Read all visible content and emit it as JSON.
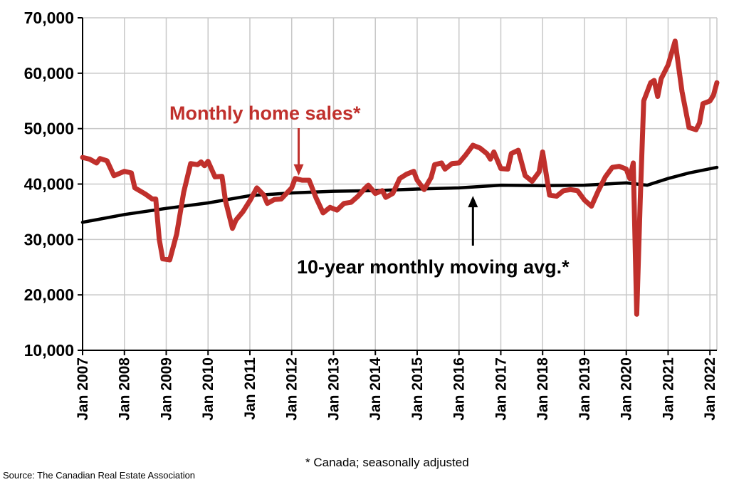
{
  "chart_data": {
    "type": "line",
    "ylim": [
      10000,
      70000
    ],
    "yticks": [
      10000,
      20000,
      30000,
      40000,
      50000,
      60000,
      70000
    ],
    "ytick_labels": [
      "10,000",
      "20,000",
      "30,000",
      "40,000",
      "50,000",
      "60,000",
      "70,000"
    ],
    "x_range": [
      "Jan 2007",
      "Mar 2022"
    ],
    "xtick_labels": [
      "Jan 2007",
      "Jan 2008",
      "Jan 2009",
      "Jan 2010",
      "Jan 2011",
      "Jan 2012",
      "Jan 2013",
      "Jan 2014",
      "Jan 2015",
      "Jan 2016",
      "Jan 2017",
      "Jan 2018",
      "Jan 2019",
      "Jan 2020",
      "Jan 2021",
      "Jan 2022"
    ],
    "grid": true,
    "series": [
      {
        "name": "Monthly home sales*",
        "color": "#c0302c",
        "points": [
          [
            "2007-01",
            44800
          ],
          [
            "2007-03",
            44500
          ],
          [
            "2007-05",
            43800
          ],
          [
            "2007-06",
            44600
          ],
          [
            "2007-08",
            44200
          ],
          [
            "2007-10",
            41500
          ],
          [
            "2008-01",
            42300
          ],
          [
            "2008-03",
            42000
          ],
          [
            "2008-04",
            39300
          ],
          [
            "2008-07",
            38200
          ],
          [
            "2008-09",
            37300
          ],
          [
            "2008-10",
            37300
          ],
          [
            "2008-11",
            30000
          ],
          [
            "2008-12",
            26500
          ],
          [
            "2009-02",
            26300
          ],
          [
            "2009-04",
            31000
          ],
          [
            "2009-06",
            38500
          ],
          [
            "2009-08",
            43700
          ],
          [
            "2009-10",
            43500
          ],
          [
            "2009-11",
            44000
          ],
          [
            "2009-12",
            43300
          ],
          [
            "2010-01",
            44100
          ],
          [
            "2010-03",
            41300
          ],
          [
            "2010-05",
            41400
          ],
          [
            "2010-06",
            37000
          ],
          [
            "2010-08",
            32000
          ],
          [
            "2010-09",
            33500
          ],
          [
            "2010-11",
            35000
          ],
          [
            "2011-01",
            37000
          ],
          [
            "2011-03",
            39300
          ],
          [
            "2011-05",
            38000
          ],
          [
            "2011-06",
            36500
          ],
          [
            "2011-08",
            37200
          ],
          [
            "2011-10",
            37300
          ],
          [
            "2012-01",
            39300
          ],
          [
            "2012-02",
            41000
          ],
          [
            "2012-04",
            40700
          ],
          [
            "2012-06",
            40700
          ],
          [
            "2012-08",
            37500
          ],
          [
            "2012-10",
            34800
          ],
          [
            "2012-12",
            35800
          ],
          [
            "2013-02",
            35300
          ],
          [
            "2013-04",
            36500
          ],
          [
            "2013-06",
            36700
          ],
          [
            "2013-08",
            37800
          ],
          [
            "2013-10",
            39200
          ],
          [
            "2013-11",
            39800
          ],
          [
            "2014-01",
            38300
          ],
          [
            "2014-03",
            38800
          ],
          [
            "2014-04",
            37600
          ],
          [
            "2014-06",
            38300
          ],
          [
            "2014-08",
            41000
          ],
          [
            "2014-10",
            41800
          ],
          [
            "2014-12",
            42300
          ],
          [
            "2015-01",
            40700
          ],
          [
            "2015-03",
            39000
          ],
          [
            "2015-05",
            41200
          ],
          [
            "2015-06",
            43500
          ],
          [
            "2015-08",
            43800
          ],
          [
            "2015-09",
            42700
          ],
          [
            "2015-11",
            43700
          ],
          [
            "2016-01",
            43800
          ],
          [
            "2016-03",
            45300
          ],
          [
            "2016-05",
            47000
          ],
          [
            "2016-07",
            46500
          ],
          [
            "2016-09",
            45500
          ],
          [
            "2016-10",
            44500
          ],
          [
            "2016-11",
            45800
          ],
          [
            "2017-01",
            42800
          ],
          [
            "2017-03",
            42700
          ],
          [
            "2017-04",
            45500
          ],
          [
            "2017-06",
            46100
          ],
          [
            "2017-08",
            41500
          ],
          [
            "2017-10",
            40500
          ],
          [
            "2017-12",
            42200
          ],
          [
            "2018-01",
            45800
          ],
          [
            "2018-03",
            38000
          ],
          [
            "2018-05",
            37800
          ],
          [
            "2018-07",
            38800
          ],
          [
            "2018-09",
            39000
          ],
          [
            "2018-11",
            38800
          ],
          [
            "2019-01",
            37100
          ],
          [
            "2019-03",
            36000
          ],
          [
            "2019-05",
            38800
          ],
          [
            "2019-07",
            41300
          ],
          [
            "2019-09",
            43000
          ],
          [
            "2019-11",
            43200
          ],
          [
            "2020-01",
            42700
          ],
          [
            "2020-02",
            41000
          ],
          [
            "2020-03",
            43800
          ],
          [
            "2020-04",
            16500
          ],
          [
            "2020-05",
            37000
          ],
          [
            "2020-06",
            55000
          ],
          [
            "2020-08",
            58300
          ],
          [
            "2020-09",
            58700
          ],
          [
            "2020-10",
            55800
          ],
          [
            "2020-11",
            59000
          ],
          [
            "2021-01",
            61500
          ],
          [
            "2021-03",
            65800
          ],
          [
            "2021-05",
            56700
          ],
          [
            "2021-07",
            50200
          ],
          [
            "2021-09",
            49800
          ],
          [
            "2021-10",
            51000
          ],
          [
            "2021-11",
            54500
          ],
          [
            "2022-01",
            55000
          ],
          [
            "2022-02",
            56000
          ],
          [
            "2022-03",
            58300
          ]
        ]
      },
      {
        "name": "10-year monthly moving avg.*",
        "color": "#000000",
        "points": [
          [
            "2007-01",
            33100
          ],
          [
            "2008-01",
            34500
          ],
          [
            "2009-01",
            35600
          ],
          [
            "2010-01",
            36600
          ],
          [
            "2011-01",
            37900
          ],
          [
            "2012-01",
            38400
          ],
          [
            "2013-01",
            38700
          ],
          [
            "2014-01",
            38800
          ],
          [
            "2015-01",
            39100
          ],
          [
            "2016-01",
            39300
          ],
          [
            "2017-01",
            39800
          ],
          [
            "2018-01",
            39700
          ],
          [
            "2019-01",
            39800
          ],
          [
            "2020-01",
            40200
          ],
          [
            "2020-07",
            39800
          ],
          [
            "2021-01",
            41000
          ],
          [
            "2021-07",
            42000
          ],
          [
            "2022-03",
            43000
          ]
        ]
      }
    ],
    "annotations": [
      {
        "text": "Monthly home sales*",
        "arrow_to": [
          "2012-03",
          41000
        ]
      },
      {
        "text": "10-year monthly moving avg.*",
        "arrow_to": [
          "2016-05",
          39400
        ]
      }
    ]
  },
  "footnote": "* Canada; seasonally adjusted",
  "source": "Source: The Canadian Real Estate Association"
}
